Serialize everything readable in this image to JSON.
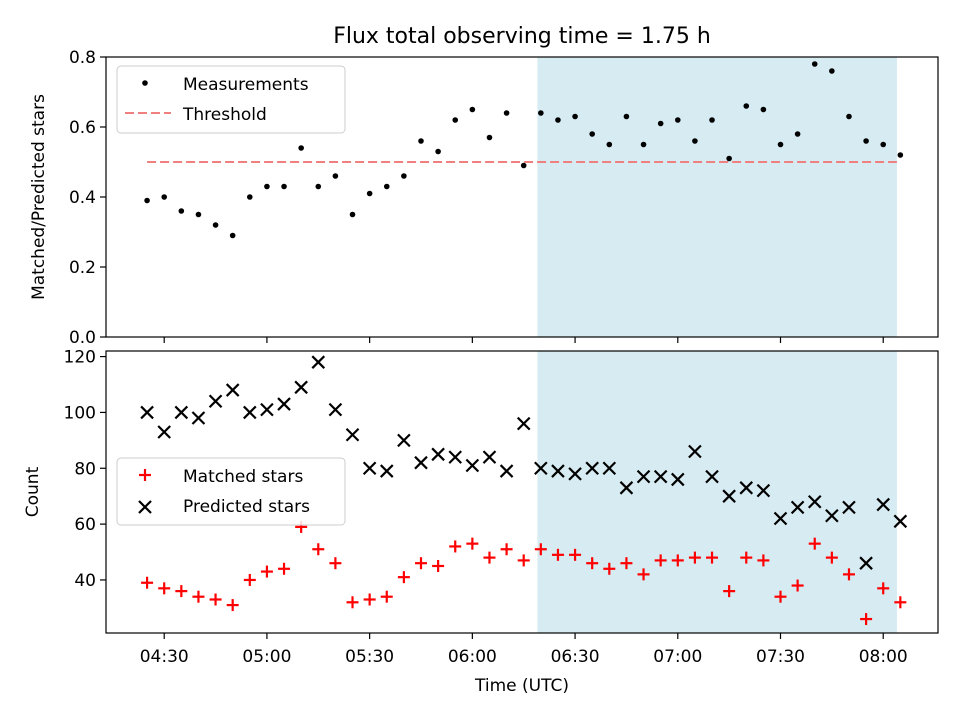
{
  "title": "Flux total observing time = 1.75 h",
  "colors": {
    "shade": "#add8e6",
    "threshold": "#f08080",
    "measurement": "#000000",
    "matched": "#ff0000",
    "predicted": "#000000"
  },
  "chart_data": [
    {
      "type": "scatter",
      "ylabel": "Matched/Predicted stars",
      "ylim": [
        0,
        0.8
      ],
      "yticks": [
        0,
        0.2,
        0.4,
        0.6,
        0.8
      ],
      "ytick_labels": [
        "0.0",
        "0.2",
        "0.4",
        "0.6",
        "0.8"
      ],
      "shaded_interval": [
        "06:19",
        "08:04"
      ],
      "legend": {
        "placement": "top-left",
        "entries": [
          "Measurements",
          "Threshold"
        ]
      },
      "threshold": {
        "name": "Threshold",
        "value": 0.5,
        "x_range": [
          "04:25",
          "08:04"
        ]
      },
      "series": [
        {
          "name": "Measurements",
          "x": [
            "04:25",
            "04:30",
            "04:35",
            "04:40",
            "04:45",
            "04:50",
            "04:55",
            "05:00",
            "05:05",
            "05:10",
            "05:15",
            "05:20",
            "05:25",
            "05:30",
            "05:35",
            "05:40",
            "05:45",
            "05:50",
            "05:55",
            "06:00",
            "06:05",
            "06:10",
            "06:15",
            "06:20",
            "06:25",
            "06:30",
            "06:35",
            "06:40",
            "06:45",
            "06:50",
            "06:55",
            "07:00",
            "07:05",
            "07:10",
            "07:15",
            "07:20",
            "07:25",
            "07:30",
            "07:35",
            "07:40",
            "07:45",
            "07:50",
            "07:55",
            "08:00",
            "08:05"
          ],
          "y": [
            0.39,
            0.4,
            0.36,
            0.35,
            0.32,
            0.29,
            0.4,
            0.43,
            0.43,
            0.54,
            0.43,
            0.46,
            0.35,
            0.41,
            0.43,
            0.46,
            0.56,
            0.53,
            0.62,
            0.65,
            0.57,
            0.64,
            0.49,
            0.64,
            0.62,
            0.63,
            0.58,
            0.55,
            0.63,
            0.55,
            0.61,
            0.62,
            0.56,
            0.62,
            0.51,
            0.66,
            0.65,
            0.55,
            0.58,
            0.78,
            0.76,
            0.63,
            0.56,
            0.55,
            0.52
          ]
        }
      ]
    },
    {
      "type": "scatter",
      "xlabel": "Time (UTC)",
      "ylabel": "Count",
      "ylim": [
        21,
        122
      ],
      "yticks": [
        40,
        60,
        80,
        100,
        120
      ],
      "ytick_labels": [
        "40",
        "60",
        "80",
        "100",
        "120"
      ],
      "xlim": [
        "04:13",
        "08:16"
      ],
      "xticks": [
        "04:30",
        "05:00",
        "05:30",
        "06:00",
        "06:30",
        "07:00",
        "07:30",
        "08:00"
      ],
      "xtick_labels": [
        "04:30",
        "05:00",
        "05:30",
        "06:00",
        "06:30",
        "07:00",
        "07:30",
        "08:00"
      ],
      "shaded_interval": [
        "06:19",
        "08:04"
      ],
      "legend": {
        "placement": "center-left",
        "entries": [
          "Matched stars",
          "Predicted stars"
        ]
      },
      "series": [
        {
          "name": "Matched stars",
          "marker": "+",
          "x": [
            "04:25",
            "04:30",
            "04:35",
            "04:40",
            "04:45",
            "04:50",
            "04:55",
            "05:00",
            "05:05",
            "05:10",
            "05:15",
            "05:20",
            "05:25",
            "05:30",
            "05:35",
            "05:40",
            "05:45",
            "05:50",
            "05:55",
            "06:00",
            "06:05",
            "06:10",
            "06:15",
            "06:20",
            "06:25",
            "06:30",
            "06:35",
            "06:40",
            "06:45",
            "06:50",
            "06:55",
            "07:00",
            "07:05",
            "07:10",
            "07:15",
            "07:20",
            "07:25",
            "07:30",
            "07:35",
            "07:40",
            "07:45",
            "07:50",
            "07:55",
            "08:00",
            "08:05"
          ],
          "y": [
            39,
            37,
            36,
            34,
            33,
            31,
            40,
            43,
            44,
            59,
            51,
            46,
            32,
            33,
            34,
            41,
            46,
            45,
            52,
            53,
            48,
            51,
            47,
            51,
            49,
            49,
            46,
            44,
            46,
            42,
            47,
            47,
            48,
            48,
            36,
            48,
            47,
            34,
            38,
            53,
            48,
            42,
            26,
            37,
            32
          ]
        },
        {
          "name": "Predicted stars",
          "marker": "x",
          "x": [
            "04:25",
            "04:30",
            "04:35",
            "04:40",
            "04:45",
            "04:50",
            "04:55",
            "05:00",
            "05:05",
            "05:10",
            "05:15",
            "05:20",
            "05:25",
            "05:30",
            "05:35",
            "05:40",
            "05:45",
            "05:50",
            "05:55",
            "06:00",
            "06:05",
            "06:10",
            "06:15",
            "06:20",
            "06:25",
            "06:30",
            "06:35",
            "06:40",
            "06:45",
            "06:50",
            "06:55",
            "07:00",
            "07:05",
            "07:10",
            "07:15",
            "07:20",
            "07:25",
            "07:30",
            "07:35",
            "07:40",
            "07:45",
            "07:50",
            "07:55",
            "08:00",
            "08:05"
          ],
          "y": [
            100,
            93,
            100,
            98,
            104,
            108,
            100,
            101,
            103,
            109,
            118,
            101,
            92,
            80,
            79,
            90,
            82,
            85,
            84,
            81,
            84,
            79,
            96,
            80,
            79,
            78,
            80,
            80,
            73,
            77,
            77,
            76,
            86,
            77,
            70,
            73,
            72,
            62,
            66,
            68,
            63,
            66,
            46,
            67,
            61
          ]
        }
      ]
    }
  ]
}
